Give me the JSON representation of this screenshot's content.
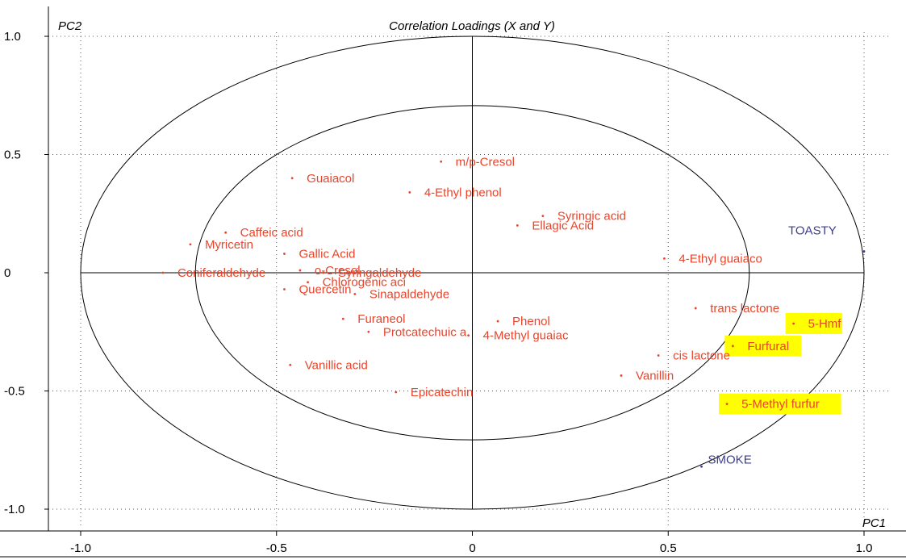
{
  "chart_data": {
    "type": "scatter",
    "title": "Correlation Loadings (X and Y)",
    "xlabel": "PC1",
    "ylabel": "PC2",
    "xlim": [
      -1.0,
      1.0
    ],
    "ylim": [
      -1.0,
      1.0
    ],
    "x_ticks": [
      "-1.0",
      "-0.5",
      "0",
      "0.5",
      "1.0"
    ],
    "y_ticks": [
      "1.0",
      "0.5",
      "0",
      "-0.5",
      "-1.0"
    ],
    "grid": "dotted",
    "circles": [
      1.0,
      0.707
    ],
    "colors": {
      "x_variables": "#e8452c",
      "y_variables": "#3c3c96",
      "highlight": "#ffff00"
    },
    "points": [
      {
        "label": "m/p-Cresol",
        "x": -0.08,
        "y": 0.47,
        "group": "x",
        "highlight": false
      },
      {
        "label": "Guaiacol",
        "x": -0.46,
        "y": 0.4,
        "group": "x",
        "highlight": false
      },
      {
        "label": "4-Ethyl phenol",
        "x": -0.16,
        "y": 0.34,
        "group": "x",
        "highlight": false
      },
      {
        "label": "Syringic acid",
        "x": 0.18,
        "y": 0.24,
        "group": "x",
        "highlight": false
      },
      {
        "label": "Ellagic Acid",
        "x": 0.115,
        "y": 0.2,
        "group": "x",
        "highlight": false
      },
      {
        "label": "Caffeic acid",
        "x": -0.63,
        "y": 0.17,
        "group": "x",
        "highlight": false
      },
      {
        "label": "Myricetin",
        "x": -0.72,
        "y": 0.12,
        "group": "x",
        "highlight": false
      },
      {
        "label": "Gallic Acid",
        "x": -0.48,
        "y": 0.08,
        "group": "x",
        "highlight": false
      },
      {
        "label": "4-Ethyl guaiaco",
        "x": 0.49,
        "y": 0.06,
        "group": "x",
        "highlight": false
      },
      {
        "label": "o-Cresol",
        "x": -0.44,
        "y": 0.01,
        "group": "x",
        "highlight": false
      },
      {
        "label": "Syringaldehyde",
        "x": -0.38,
        "y": 0.0,
        "group": "x",
        "highlight": false
      },
      {
        "label": "Coniferaldehyde",
        "x": -0.79,
        "y": 0.0,
        "group": "x",
        "highlight": false
      },
      {
        "label": "Chlorogenic aci",
        "x": -0.42,
        "y": -0.04,
        "group": "x",
        "highlight": false
      },
      {
        "label": "Quercetin",
        "x": -0.48,
        "y": -0.07,
        "group": "x",
        "highlight": false
      },
      {
        "label": "Sinapaldehyde",
        "x": -0.3,
        "y": -0.09,
        "group": "x",
        "highlight": false
      },
      {
        "label": "trans lactone",
        "x": 0.57,
        "y": -0.15,
        "group": "x",
        "highlight": false
      },
      {
        "label": "Furaneol",
        "x": -0.33,
        "y": -0.195,
        "group": "x",
        "highlight": false
      },
      {
        "label": "Phenol",
        "x": 0.065,
        "y": -0.205,
        "group": "x",
        "highlight": false
      },
      {
        "label": "5-Hmf",
        "x": 0.82,
        "y": -0.215,
        "group": "x",
        "highlight": true
      },
      {
        "label": "Protcatechuic a",
        "x": -0.265,
        "y": -0.25,
        "group": "x",
        "highlight": false
      },
      {
        "label": "4-Methyl guaiac",
        "x": -0.01,
        "y": -0.265,
        "group": "x",
        "highlight": false
      },
      {
        "label": "Furfural",
        "x": 0.665,
        "y": -0.31,
        "group": "x",
        "highlight": true
      },
      {
        "label": "cis lactone",
        "x": 0.475,
        "y": -0.35,
        "group": "x",
        "highlight": false
      },
      {
        "label": "Vanillic acid",
        "x": -0.465,
        "y": -0.39,
        "group": "x",
        "highlight": false
      },
      {
        "label": "Vanillin",
        "x": 0.38,
        "y": -0.435,
        "group": "x",
        "highlight": false
      },
      {
        "label": "Epicatechin",
        "x": -0.195,
        "y": -0.505,
        "group": "x",
        "highlight": false
      },
      {
        "label": "5-Methyl furfur",
        "x": 0.65,
        "y": -0.555,
        "group": "x",
        "highlight": true
      },
      {
        "label": "TOASTY",
        "x": 1.0,
        "y": 0.09,
        "group": "y",
        "highlight": false
      },
      {
        "label": "SMOKE",
        "x": 0.585,
        "y": -0.82,
        "group": "y",
        "highlight": false
      }
    ]
  }
}
